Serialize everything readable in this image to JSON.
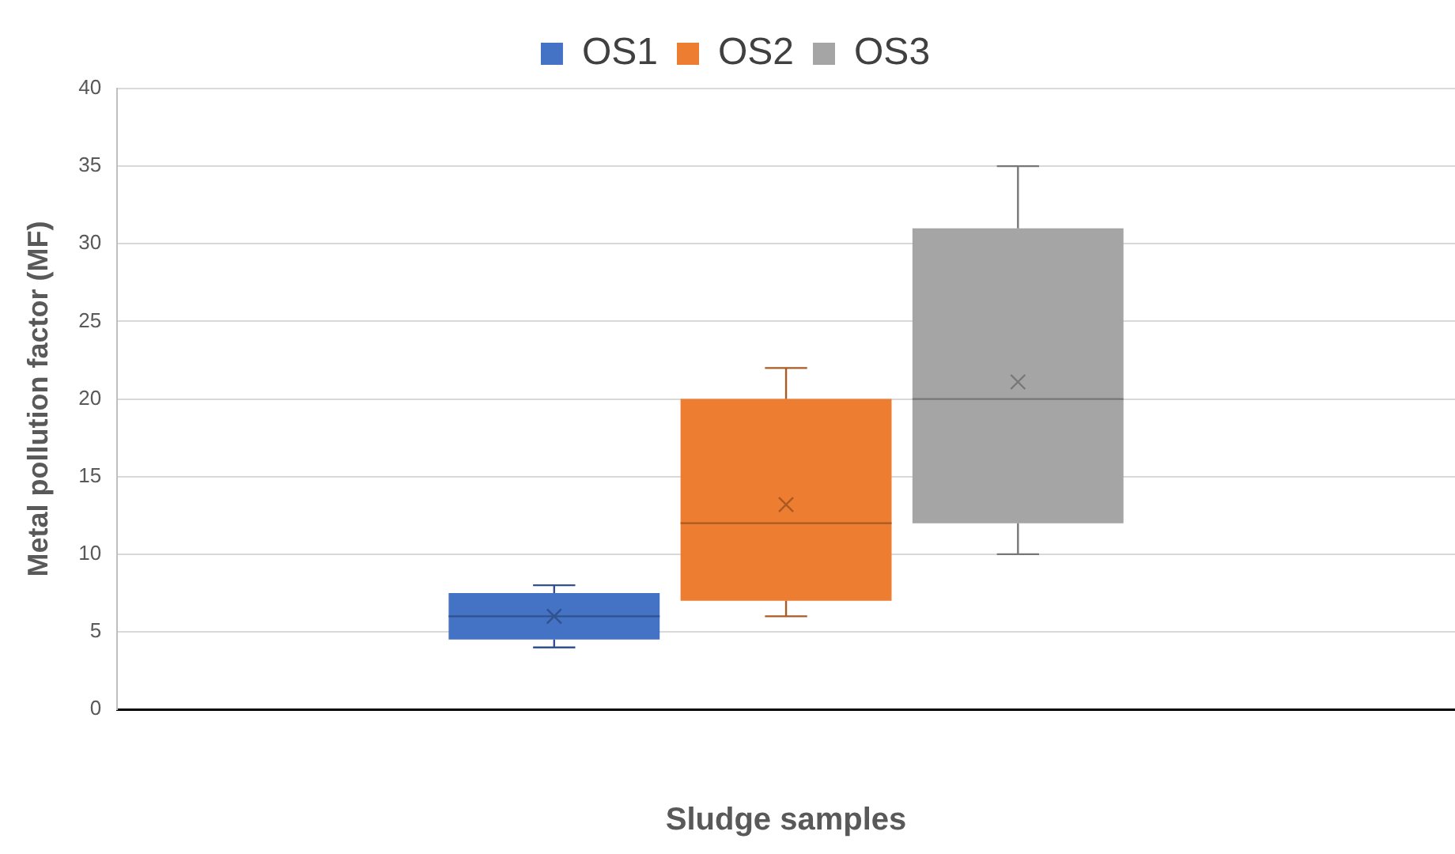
{
  "chart_data": {
    "type": "box",
    "xlabel": "Sludge samples",
    "ylabel": "Metal pollution factor (MF)",
    "categories": [
      null
    ],
    "series": [
      {
        "name": "OS1",
        "color": "#4472c4",
        "boxes": [
          {
            "low": 4,
            "q1": 4.5,
            "median": 6,
            "q3": 7.5,
            "high": 8,
            "mean": 6
          }
        ]
      },
      {
        "name": "OS2",
        "color": "#ed7d31",
        "boxes": [
          {
            "low": 6,
            "q1": 7,
            "median": 12,
            "q3": 20,
            "high": 22,
            "mean": 13.2
          }
        ]
      },
      {
        "name": "OS3",
        "color": "#a5a5a5",
        "boxes": [
          {
            "low": 10,
            "q1": 12,
            "median": 20,
            "q3": 31,
            "high": 35,
            "mean": 21.1
          }
        ]
      }
    ],
    "ylim": [
      0,
      40
    ],
    "yticks": [
      0,
      5,
      10,
      15,
      20,
      25,
      30,
      35,
      40
    ],
    "grid": "y",
    "legend": "top"
  }
}
